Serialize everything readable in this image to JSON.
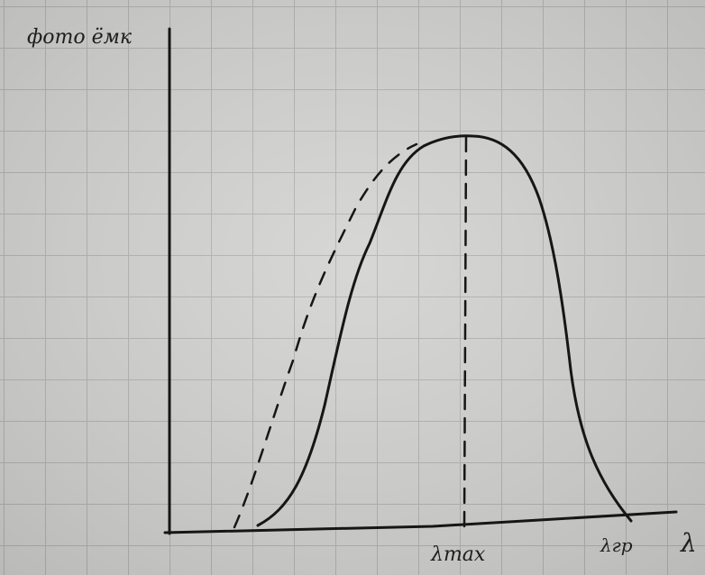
{
  "axes": {
    "y_label": "фото ёмк",
    "x_label": "λ"
  },
  "annotations": {
    "peak": "λmax",
    "cutoff": "λгр"
  }
}
